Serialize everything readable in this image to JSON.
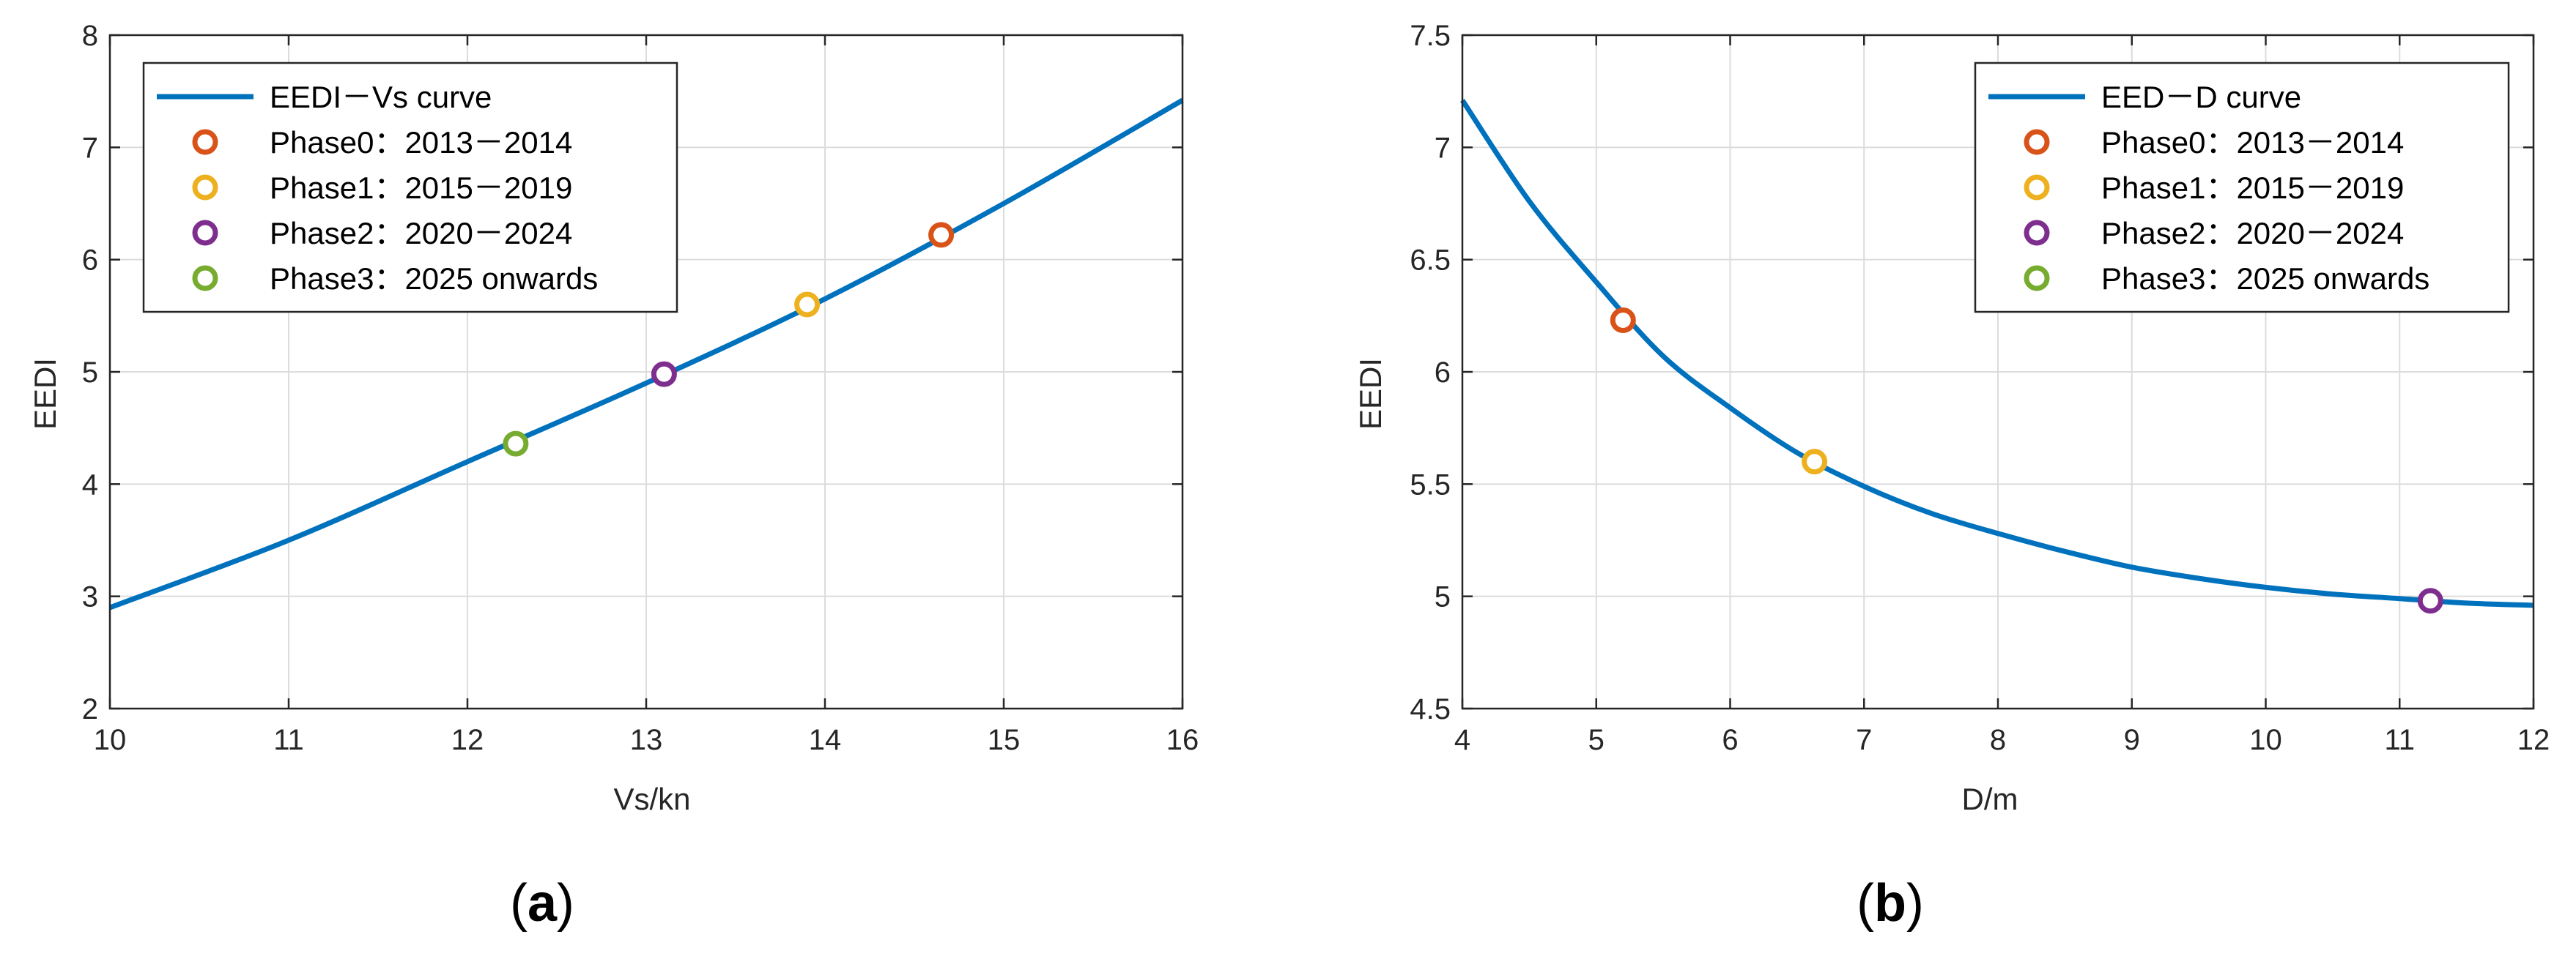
{
  "colors": {
    "curve": "#0072BD",
    "phase0": "#D95319",
    "phase1": "#EDB120",
    "phase2": "#7E2F8E",
    "phase3": "#77AC30",
    "grid": "#dcdcdc",
    "axis": "#262626"
  },
  "chart_data": [
    {
      "type": "line",
      "panel_label": "a",
      "xlabel": "Vs/kn",
      "ylabel": "EEDI",
      "xlim": [
        10,
        16
      ],
      "ylim": [
        2,
        8
      ],
      "xticks": [
        10,
        11,
        12,
        13,
        14,
        15,
        16
      ],
      "yticks": [
        2,
        3,
        4,
        5,
        6,
        7,
        8
      ],
      "grid": true,
      "legend_position": "top-left",
      "series": [
        {
          "name": "EEDI－Vs curve",
          "kind": "line",
          "x": [
            10,
            11,
            12,
            13,
            14,
            15,
            16
          ],
          "y": [
            2.9,
            3.5,
            4.2,
            4.9,
            5.65,
            6.5,
            7.42
          ]
        },
        {
          "name": "Phase0：2013－2014",
          "kind": "marker",
          "color_key": "phase0",
          "x": [
            14.65
          ],
          "y": [
            6.22
          ]
        },
        {
          "name": "Phase1：2015－2019",
          "kind": "marker",
          "color_key": "phase1",
          "x": [
            13.9
          ],
          "y": [
            5.6
          ]
        },
        {
          "name": "Phase2：2020－2024",
          "kind": "marker",
          "color_key": "phase2",
          "x": [
            13.1
          ],
          "y": [
            4.98
          ]
        },
        {
          "name": "Phase3：2025 onwards",
          "kind": "marker",
          "color_key": "phase3",
          "x": [
            12.27
          ],
          "y": [
            4.36
          ]
        }
      ]
    },
    {
      "type": "line",
      "panel_label": "b",
      "xlabel": "D/m",
      "ylabel": "EEDI",
      "xlim": [
        4,
        12
      ],
      "ylim": [
        4.5,
        7.5
      ],
      "xticks": [
        4,
        5,
        6,
        7,
        8,
        9,
        10,
        11,
        12
      ],
      "yticks": [
        4.5,
        5,
        5.5,
        6,
        6.5,
        7,
        7.5
      ],
      "grid": true,
      "legend_position": "top-right",
      "series": [
        {
          "name": "EED－D curve",
          "kind": "line",
          "x": [
            4,
            4.5,
            5,
            5.5,
            6,
            6.5,
            7,
            7.5,
            8,
            8.5,
            9,
            9.5,
            10,
            10.5,
            11,
            11.5,
            12
          ],
          "y": [
            7.21,
            6.76,
            6.4,
            6.07,
            5.84,
            5.64,
            5.49,
            5.37,
            5.28,
            5.2,
            5.13,
            5.08,
            5.04,
            5.01,
            4.99,
            4.97,
            4.96
          ]
        },
        {
          "name": "Phase0：2013－2014",
          "kind": "marker",
          "color_key": "phase0",
          "x": [
            5.2
          ],
          "y": [
            6.23
          ]
        },
        {
          "name": "Phase1：2015－2019",
          "kind": "marker",
          "color_key": "phase1",
          "x": [
            6.63
          ],
          "y": [
            5.6
          ]
        },
        {
          "name": "Phase2：2020－2024",
          "kind": "marker",
          "color_key": "phase2",
          "x": [
            11.23
          ],
          "y": [
            4.98
          ]
        },
        {
          "name": "Phase3：2025 onwards",
          "kind": "marker",
          "color_key": "phase3",
          "x": [],
          "y": []
        }
      ]
    }
  ]
}
